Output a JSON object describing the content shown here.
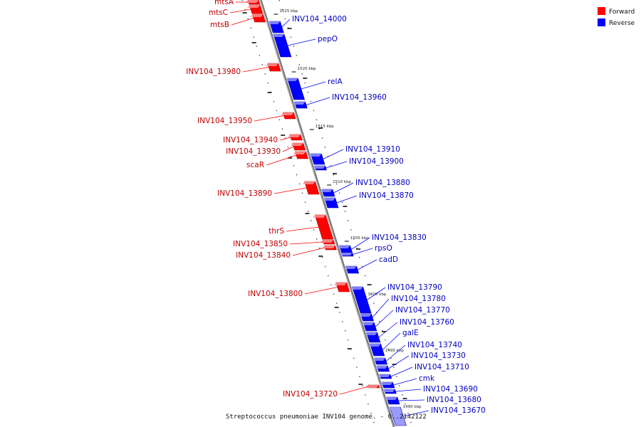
{
  "caption": "Streptococcus pneumoniae INV104 genome. - 0..2142122",
  "legend": {
    "forward_label": "Forward",
    "reverse_label": "Reverse",
    "forward_color": "#ff0000",
    "reverse_color": "#0000ff"
  },
  "ticks": [
    "1525 kbp",
    "1520 kbp",
    "1515 kbp",
    "1510 kbp",
    "1505 kbp",
    "1500 kbp",
    "1495 kbp",
    "1490 kbp"
  ],
  "forward_genes": [
    "mtsA",
    "mtsC",
    "mtsB",
    "INV104_13980",
    "INV104_13950",
    "INV104_13940",
    "INV104_13930",
    "scaR",
    "INV104_13890",
    "thrS",
    "INV104_13850",
    "INV104_13840",
    "INV104_13800",
    "INV104_13720"
  ],
  "reverse_genes": [
    "INV104_14000",
    "pepO",
    "relA",
    "INV104_13960",
    "INV104_13910",
    "INV104_13900",
    "INV104_13880",
    "INV104_13870",
    "INV104_13830",
    "rpsO",
    "cadD",
    "INV104_13790",
    "INV104_13780",
    "INV104_13770",
    "INV104_13760",
    "galE",
    "INV104_13740",
    "INV104_13730",
    "INV104_13710",
    "cmk",
    "INV104_13690",
    "INV104_13680",
    "INV104_13670"
  ]
}
